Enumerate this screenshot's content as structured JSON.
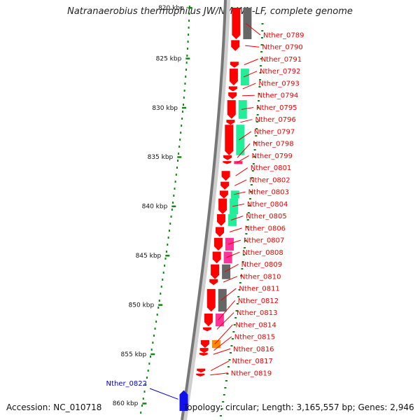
{
  "title": "Natranaerobius thermophilus JW/NM-WN-LF, complete genome",
  "accession": "Accession: NC_010718",
  "topology": "Topology: circular; Length: 3,165,557 bp; Genes: 2,946",
  "colors": {
    "backbone_dark": "#777777",
    "backbone_light": "#cfcfcf",
    "cds_forward": "#ff0000",
    "cds_reverse": "#1111ee",
    "cog_green": "#22ee99",
    "cog_gray": "#666666",
    "cog_pink": "#ff3399",
    "cog_orange": "#ff8800",
    "rna": "#ff2277",
    "tick_green": "#118811",
    "label_red": "#ee0000",
    "label_blue": "#0000cc"
  },
  "ticks": [
    {
      "label": "820 kbp",
      "kbp": 820
    },
    {
      "label": "825 kbp",
      "kbp": 825
    },
    {
      "label": "830 kbp",
      "kbp": 830
    },
    {
      "label": "835 kbp",
      "kbp": 835
    },
    {
      "label": "840 kbp",
      "kbp": 840
    },
    {
      "label": "845 kbp",
      "kbp": 845
    },
    {
      "label": "850 kbp",
      "kbp": 850
    },
    {
      "label": "855 kbp",
      "kbp": 855
    },
    {
      "label": "860 kbp",
      "kbp": 860
    }
  ],
  "genes": [
    {
      "name": "Nther_0789",
      "start_kbp": 820.0,
      "end_kbp": 823.2,
      "strand": "+",
      "cog": "gray"
    },
    {
      "name": "Nther_0790",
      "start_kbp": 823.3,
      "end_kbp": 824.4,
      "strand": "+",
      "cog": ""
    },
    {
      "name": "Nther_0791",
      "start_kbp": 825.5,
      "end_kbp": 826.1,
      "strand": "+",
      "cog": ""
    },
    {
      "name": "Nther_0792",
      "start_kbp": 826.2,
      "end_kbp": 827.9,
      "strand": "+",
      "cog": "green"
    },
    {
      "name": "Nther_0793",
      "start_kbp": 828.0,
      "end_kbp": 828.5,
      "strand": "+",
      "cog": ""
    },
    {
      "name": "Nther_0794",
      "start_kbp": 828.6,
      "end_kbp": 829.3,
      "strand": "+",
      "cog": ""
    },
    {
      "name": "Nther_0795",
      "start_kbp": 829.4,
      "end_kbp": 831.3,
      "strand": "+",
      "cog": "green"
    },
    {
      "name": "Nther_0796",
      "start_kbp": 831.4,
      "end_kbp": 831.9,
      "strand": "+",
      "cog": ""
    },
    {
      "name": "Nther_0797",
      "start_kbp": 831.9,
      "end_kbp": 835.0,
      "strand": "+",
      "cog": "green"
    },
    {
      "name": "Nther_0798",
      "start_kbp": 835.0,
      "end_kbp": 835.5,
      "strand": "+",
      "cog": ""
    },
    {
      "name": "Nther_0799",
      "start_kbp": 835.6,
      "end_kbp": 835.9,
      "strand": "+",
      "cog": "rna"
    },
    {
      "name": "Nther_0801",
      "start_kbp": 836.6,
      "end_kbp": 837.6,
      "strand": "+",
      "cog": ""
    },
    {
      "name": "Nther_0802",
      "start_kbp": 837.7,
      "end_kbp": 838.5,
      "strand": "+",
      "cog": ""
    },
    {
      "name": "Nther_0803",
      "start_kbp": 838.6,
      "end_kbp": 839.4,
      "strand": "+",
      "cog": "green"
    },
    {
      "name": "Nther_0804",
      "start_kbp": 839.4,
      "end_kbp": 841.0,
      "strand": "+",
      "cog": "green"
    },
    {
      "name": "Nther_0805",
      "start_kbp": 841.0,
      "end_kbp": 842.2,
      "strand": "+",
      "cog": "green"
    },
    {
      "name": "Nther_0806",
      "start_kbp": 842.3,
      "end_kbp": 843.3,
      "strand": "+",
      "cog": ""
    },
    {
      "name": "Nther_0807",
      "start_kbp": 843.4,
      "end_kbp": 844.7,
      "strand": "+",
      "cog": "pink"
    },
    {
      "name": "Nther_0808",
      "start_kbp": 844.8,
      "end_kbp": 846.0,
      "strand": "+",
      "cog": "pink"
    },
    {
      "name": "Nther_0809",
      "start_kbp": 846.1,
      "end_kbp": 847.6,
      "strand": "+",
      "cog": "gray"
    },
    {
      "name": "Nther_0810",
      "start_kbp": 847.6,
      "end_kbp": 848.2,
      "strand": "+",
      "cog": ""
    },
    {
      "name": "Nther_0811",
      "start_kbp": 848.6,
      "end_kbp": 850.9,
      "strand": "+",
      "cog": "gray"
    },
    {
      "name": "Nther_0812",
      "start_kbp": 851.1,
      "end_kbp": 852.4,
      "strand": "+",
      "cog": "pink"
    },
    {
      "name": "Nther_0813",
      "start_kbp": 852.5,
      "end_kbp": 852.9,
      "strand": "+",
      "cog": ""
    },
    {
      "name": "Nther_0814",
      "start_kbp": 853.8,
      "end_kbp": 854.6,
      "strand": "+",
      "cog": "orange"
    },
    {
      "name": "Nther_0815",
      "start_kbp": 854.6,
      "end_kbp": 855.1,
      "strand": "+",
      "cog": ""
    },
    {
      "name": "Nther_0816",
      "start_kbp": 855.1,
      "end_kbp": 855.4,
      "strand": "+",
      "cog": ""
    },
    {
      "name": "Nther_0817",
      "start_kbp": 856.7,
      "end_kbp": 857.1,
      "strand": "+",
      "cog": ""
    },
    {
      "name": "Nther_0819",
      "start_kbp": 857.2,
      "end_kbp": 857.5,
      "strand": "+",
      "cog": ""
    },
    {
      "name": "Nther_0822",
      "start_kbp": 858.9,
      "end_kbp": 861.0,
      "strand": "-",
      "cog": ""
    }
  ]
}
